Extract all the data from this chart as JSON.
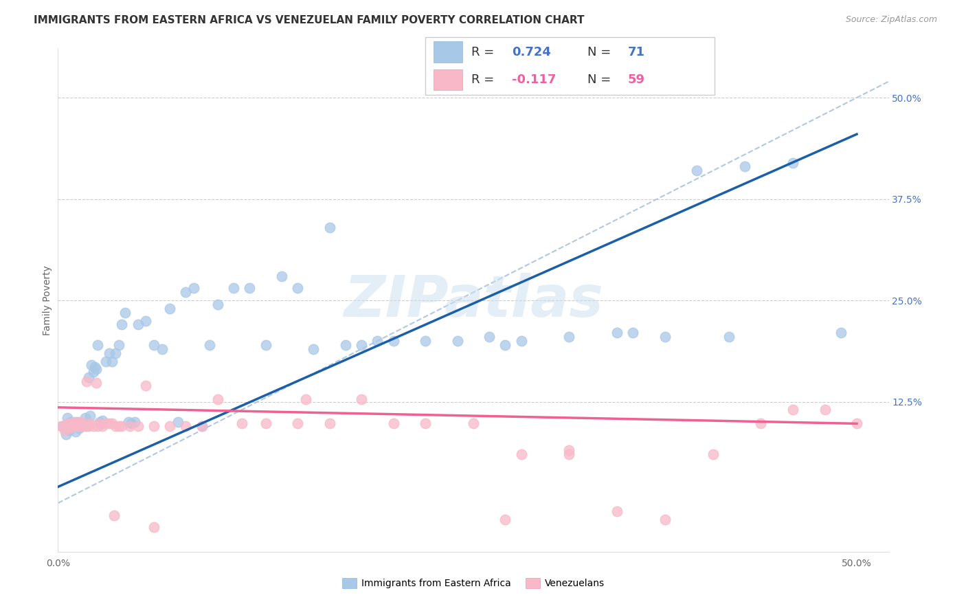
{
  "title": "IMMIGRANTS FROM EASTERN AFRICA VS VENEZUELAN FAMILY POVERTY CORRELATION CHART",
  "source": "Source: ZipAtlas.com",
  "ylabel": "Family Poverty",
  "xlim": [
    0.0,
    0.52
  ],
  "ylim": [
    -0.06,
    0.56
  ],
  "y_ticks_right": [
    0.5,
    0.375,
    0.25,
    0.125
  ],
  "y_tick_labels_right": [
    "50.0%",
    "37.5%",
    "25.0%",
    "12.5%"
  ],
  "R_blue": 0.724,
  "N_blue": 71,
  "R_pink": -0.117,
  "N_pink": 59,
  "blue_scatter_color": "#a8c8e8",
  "pink_scatter_color": "#f8b8c8",
  "blue_line_color": "#1a5fa8",
  "pink_line_color": "#f06090",
  "diagonal_color": "#b0c8e0",
  "watermark": "ZIPatlas",
  "blue_line_x0": 0.0,
  "blue_line_y0": 0.02,
  "blue_line_x1": 0.5,
  "blue_line_y1": 0.455,
  "pink_line_x0": 0.0,
  "pink_line_y0": 0.118,
  "pink_line_x1": 0.5,
  "pink_line_y1": 0.098,
  "blue_scatter_x": [
    0.003,
    0.005,
    0.006,
    0.007,
    0.008,
    0.009,
    0.01,
    0.011,
    0.012,
    0.013,
    0.014,
    0.015,
    0.016,
    0.017,
    0.018,
    0.019,
    0.02,
    0.021,
    0.022,
    0.023,
    0.024,
    0.025,
    0.026,
    0.027,
    0.028,
    0.03,
    0.032,
    0.034,
    0.036,
    0.038,
    0.04,
    0.042,
    0.044,
    0.046,
    0.048,
    0.05,
    0.055,
    0.06,
    0.065,
    0.07,
    0.075,
    0.08,
    0.085,
    0.09,
    0.095,
    0.1,
    0.11,
    0.12,
    0.13,
    0.14,
    0.15,
    0.16,
    0.17,
    0.18,
    0.19,
    0.2,
    0.21,
    0.23,
    0.25,
    0.27,
    0.29,
    0.32,
    0.35,
    0.38,
    0.4,
    0.43,
    0.46,
    0.49,
    0.36,
    0.28,
    0.42
  ],
  "blue_scatter_y": [
    0.095,
    0.085,
    0.105,
    0.09,
    0.1,
    0.095,
    0.095,
    0.088,
    0.1,
    0.092,
    0.098,
    0.095,
    0.098,
    0.105,
    0.095,
    0.155,
    0.108,
    0.17,
    0.162,
    0.168,
    0.165,
    0.195,
    0.1,
    0.098,
    0.102,
    0.175,
    0.185,
    0.175,
    0.185,
    0.195,
    0.22,
    0.235,
    0.1,
    0.098,
    0.1,
    0.22,
    0.225,
    0.195,
    0.19,
    0.24,
    0.1,
    0.26,
    0.265,
    0.095,
    0.195,
    0.245,
    0.265,
    0.265,
    0.195,
    0.28,
    0.265,
    0.19,
    0.34,
    0.195,
    0.195,
    0.2,
    0.2,
    0.2,
    0.2,
    0.205,
    0.2,
    0.205,
    0.21,
    0.205,
    0.41,
    0.415,
    0.42,
    0.21,
    0.21,
    0.195,
    0.205
  ],
  "pink_scatter_x": [
    0.002,
    0.004,
    0.005,
    0.006,
    0.007,
    0.008,
    0.009,
    0.01,
    0.011,
    0.012,
    0.013,
    0.014,
    0.015,
    0.016,
    0.017,
    0.018,
    0.019,
    0.02,
    0.022,
    0.024,
    0.026,
    0.028,
    0.03,
    0.032,
    0.034,
    0.036,
    0.038,
    0.04,
    0.045,
    0.05,
    0.055,
    0.06,
    0.07,
    0.08,
    0.09,
    0.1,
    0.115,
    0.13,
    0.15,
    0.17,
    0.19,
    0.21,
    0.23,
    0.26,
    0.29,
    0.32,
    0.35,
    0.38,
    0.41,
    0.44,
    0.46,
    0.48,
    0.5,
    0.28,
    0.32,
    0.155,
    0.06,
    0.035,
    0.025
  ],
  "pink_scatter_y": [
    0.095,
    0.09,
    0.095,
    0.098,
    0.092,
    0.098,
    0.095,
    0.1,
    0.095,
    0.098,
    0.095,
    0.1,
    0.095,
    0.098,
    0.095,
    0.15,
    0.095,
    0.098,
    0.095,
    0.148,
    0.098,
    0.095,
    0.098,
    0.098,
    0.098,
    0.095,
    0.095,
    0.095,
    0.095,
    0.095,
    0.145,
    0.095,
    0.095,
    0.095,
    0.095,
    0.128,
    0.098,
    0.098,
    0.098,
    0.098,
    0.128,
    0.098,
    0.098,
    0.098,
    0.06,
    0.06,
    -0.01,
    -0.02,
    0.06,
    0.098,
    0.115,
    0.115,
    0.098,
    -0.02,
    0.065,
    0.128,
    -0.03,
    -0.015,
    0.095
  ]
}
